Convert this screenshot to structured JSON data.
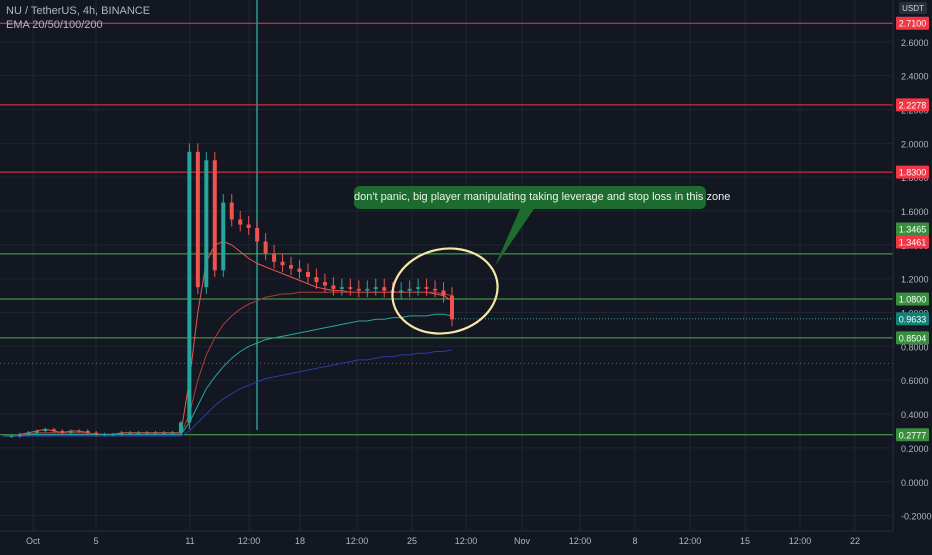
{
  "header": {
    "symbol_line": "NU / TetherUS, 4h, BINANCE",
    "indicator_line": "EMA 20/50/100/200"
  },
  "currency_badge": "USDT",
  "annotation": {
    "text": "don't panic, big player manipulating taking leverage and stop loss in this zone"
  },
  "colors": {
    "background": "#131722",
    "resistance": "#f23645",
    "support": "#4caf50",
    "candle_up": "#26a69a",
    "candle_down": "#ef5350",
    "callout": "#1e6b30",
    "highlight_circle": "#f5e7a8"
  },
  "chart_data": {
    "type": "line",
    "title": "NU / TetherUS, 4h, BINANCE",
    "y_axis_ticks": [
      "2.6000",
      "2.4000",
      "2.2000",
      "2.0000",
      "1.8000",
      "1.6000",
      "1.4000",
      "1.2000",
      "1.0000",
      "0.8000",
      "0.6000",
      "0.4000",
      "0.2000",
      "0.0000",
      "-0.2000"
    ],
    "x_axis_labels": [
      "Oct",
      "5",
      "11",
      "12:00",
      "18",
      "12:00",
      "25",
      "12:00",
      "Nov",
      "12:00",
      "8",
      "12:00",
      "15",
      "12:00",
      "22"
    ],
    "ylim": [
      -0.27,
      2.83
    ],
    "resistance_levels": [
      {
        "label": "2.7100",
        "value": 2.71
      },
      {
        "label": "2.2278",
        "value": 2.2278
      },
      {
        "label": "1.8300",
        "value": 1.83
      }
    ],
    "support_levels": [
      {
        "label": "1.3465",
        "value": 1.3465
      },
      {
        "label": "1.3461",
        "value": 1.3461
      },
      {
        "label": "1.0800",
        "value": 1.08
      },
      {
        "label": "0.8504",
        "value": 0.8504
      },
      {
        "label": "0.2777",
        "value": 0.2777
      }
    ],
    "current_price": {
      "label": "0.9633",
      "value": 0.9633
    },
    "dotted_levels": [
      0.7
    ],
    "price_path": [
      0.27,
      0.27,
      0.28,
      0.29,
      0.3,
      0.31,
      0.3,
      0.29,
      0.3,
      0.3,
      0.29,
      0.28,
      0.28,
      0.28,
      0.29,
      0.29,
      0.29,
      0.29,
      0.29,
      0.29,
      0.29,
      0.35,
      1.95,
      1.15,
      1.9,
      1.25,
      1.65,
      1.55,
      1.52,
      1.5,
      1.42,
      1.35,
      1.3,
      1.28,
      1.26,
      1.24,
      1.21,
      1.18,
      1.16,
      1.14,
      1.15,
      1.14,
      1.13,
      1.14,
      1.15,
      1.13,
      1.12,
      1.13,
      1.14,
      1.15,
      1.14,
      1.13,
      1.1,
      0.96
    ],
    "series": [
      {
        "name": "EMA 20",
        "values": [
          0.27,
          0.27,
          0.28,
          0.29,
          0.3,
          0.31,
          0.3,
          0.29,
          0.3,
          0.3,
          0.29,
          0.28,
          0.28,
          0.28,
          0.29,
          0.29,
          0.29,
          0.29,
          0.29,
          0.29,
          0.29,
          0.29,
          0.6,
          1.0,
          1.3,
          1.4,
          1.42,
          1.4,
          1.36,
          1.32,
          1.29,
          1.27,
          1.25,
          1.23,
          1.21,
          1.19,
          1.17,
          1.15,
          1.14,
          1.13,
          1.13,
          1.12,
          1.12,
          1.12,
          1.12,
          1.12,
          1.12,
          1.12,
          1.12,
          1.12,
          1.12,
          1.11,
          1.1,
          1.07
        ]
      },
      {
        "name": "EMA 50",
        "values": [
          0.27,
          0.27,
          0.28,
          0.28,
          0.29,
          0.29,
          0.29,
          0.29,
          0.29,
          0.29,
          0.29,
          0.28,
          0.28,
          0.28,
          0.28,
          0.28,
          0.28,
          0.28,
          0.28,
          0.28,
          0.28,
          0.28,
          0.4,
          0.6,
          0.75,
          0.85,
          0.93,
          0.98,
          1.02,
          1.05,
          1.07,
          1.09,
          1.1,
          1.11,
          1.11,
          1.12,
          1.12,
          1.12,
          1.12,
          1.12,
          1.12,
          1.12,
          1.12,
          1.12,
          1.12,
          1.12,
          1.12,
          1.12,
          1.12,
          1.12,
          1.12,
          1.12,
          1.11,
          1.1
        ]
      },
      {
        "name": "EMA 100",
        "values": [
          0.27,
          0.27,
          0.27,
          0.28,
          0.28,
          0.28,
          0.28,
          0.28,
          0.28,
          0.28,
          0.28,
          0.28,
          0.28,
          0.28,
          0.28,
          0.28,
          0.28,
          0.28,
          0.28,
          0.28,
          0.28,
          0.28,
          0.35,
          0.45,
          0.55,
          0.62,
          0.68,
          0.73,
          0.77,
          0.8,
          0.82,
          0.84,
          0.85,
          0.86,
          0.87,
          0.88,
          0.89,
          0.9,
          0.91,
          0.92,
          0.93,
          0.94,
          0.95,
          0.95,
          0.96,
          0.96,
          0.97,
          0.97,
          0.98,
          0.98,
          0.98,
          0.99,
          0.99,
          0.98
        ]
      },
      {
        "name": "EMA 200",
        "values": [
          0.27,
          0.27,
          0.27,
          0.27,
          0.27,
          0.27,
          0.27,
          0.27,
          0.27,
          0.27,
          0.27,
          0.27,
          0.27,
          0.27,
          0.27,
          0.27,
          0.27,
          0.27,
          0.27,
          0.27,
          0.27,
          0.27,
          0.3,
          0.35,
          0.4,
          0.45,
          0.49,
          0.52,
          0.55,
          0.57,
          0.59,
          0.61,
          0.62,
          0.63,
          0.64,
          0.65,
          0.66,
          0.67,
          0.68,
          0.69,
          0.7,
          0.71,
          0.72,
          0.72,
          0.73,
          0.74,
          0.74,
          0.75,
          0.75,
          0.76,
          0.76,
          0.77,
          0.77,
          0.78
        ]
      }
    ],
    "grid": true,
    "legend": "top-left"
  }
}
